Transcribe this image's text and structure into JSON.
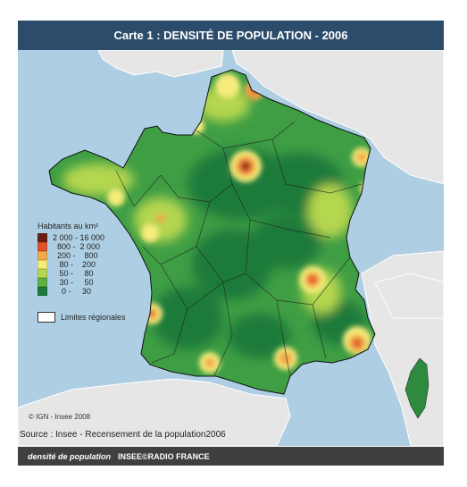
{
  "title": "Carte 1 : DENSITÉ DE POPULATION - 2006",
  "legend": {
    "title": "Habitants au km²",
    "items": [
      {
        "range": "2 000 - 16 000",
        "color": "#6b1f12"
      },
      {
        "range": "  800 -  2 000",
        "color": "#e0522a"
      },
      {
        "range": "  200 -    800",
        "color": "#f2a94a"
      },
      {
        "range": "   80 -    200",
        "color": "#f5ec7a"
      },
      {
        "range": "   50 -     80",
        "color": "#b5d650"
      },
      {
        "range": "   30 -     50",
        "color": "#5fb048"
      },
      {
        "range": "    0 -     30",
        "color": "#1e7a3a"
      }
    ]
  },
  "limits_label": "Limites régionales",
  "copyright": "© IGN - Insee 2008",
  "source": "Source : Insee - Recensement de la population2006",
  "caption": {
    "italic": "densité de population",
    "credit": "INSEE©RADIO FRANCE"
  },
  "colors": {
    "sea": "#aecfe3",
    "foreign_land": "#e6e6e6",
    "title_bar": "#2b4c6a",
    "caption_bar": "#3f3f3f"
  }
}
